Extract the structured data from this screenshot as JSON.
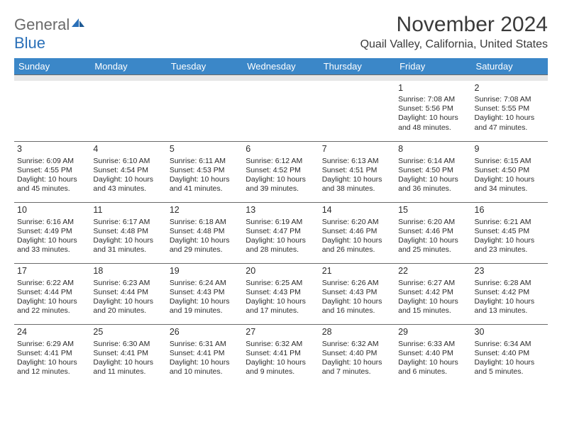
{
  "logo": {
    "word1": "General",
    "word2": "Blue"
  },
  "title": "November 2024",
  "subtitle": "Quail Valley, California, United States",
  "colors": {
    "header_bg": "#3b87c8",
    "header_fg": "#ffffff",
    "spacer_bg": "#e7e7e7",
    "rule": "#6a6a6a",
    "text": "#2b2b2b",
    "logo_gray": "#6a6a6a",
    "logo_blue": "#2a70b8"
  },
  "weekdays": [
    "Sunday",
    "Monday",
    "Tuesday",
    "Wednesday",
    "Thursday",
    "Friday",
    "Saturday"
  ],
  "weeks": [
    [
      null,
      null,
      null,
      null,
      null,
      {
        "n": "1",
        "sr": "Sunrise: 7:08 AM",
        "ss": "Sunset: 5:56 PM",
        "d1": "Daylight: 10 hours",
        "d2": "and 48 minutes."
      },
      {
        "n": "2",
        "sr": "Sunrise: 7:08 AM",
        "ss": "Sunset: 5:55 PM",
        "d1": "Daylight: 10 hours",
        "d2": "and 47 minutes."
      }
    ],
    [
      {
        "n": "3",
        "sr": "Sunrise: 6:09 AM",
        "ss": "Sunset: 4:55 PM",
        "d1": "Daylight: 10 hours",
        "d2": "and 45 minutes."
      },
      {
        "n": "4",
        "sr": "Sunrise: 6:10 AM",
        "ss": "Sunset: 4:54 PM",
        "d1": "Daylight: 10 hours",
        "d2": "and 43 minutes."
      },
      {
        "n": "5",
        "sr": "Sunrise: 6:11 AM",
        "ss": "Sunset: 4:53 PM",
        "d1": "Daylight: 10 hours",
        "d2": "and 41 minutes."
      },
      {
        "n": "6",
        "sr": "Sunrise: 6:12 AM",
        "ss": "Sunset: 4:52 PM",
        "d1": "Daylight: 10 hours",
        "d2": "and 39 minutes."
      },
      {
        "n": "7",
        "sr": "Sunrise: 6:13 AM",
        "ss": "Sunset: 4:51 PM",
        "d1": "Daylight: 10 hours",
        "d2": "and 38 minutes."
      },
      {
        "n": "8",
        "sr": "Sunrise: 6:14 AM",
        "ss": "Sunset: 4:50 PM",
        "d1": "Daylight: 10 hours",
        "d2": "and 36 minutes."
      },
      {
        "n": "9",
        "sr": "Sunrise: 6:15 AM",
        "ss": "Sunset: 4:50 PM",
        "d1": "Daylight: 10 hours",
        "d2": "and 34 minutes."
      }
    ],
    [
      {
        "n": "10",
        "sr": "Sunrise: 6:16 AM",
        "ss": "Sunset: 4:49 PM",
        "d1": "Daylight: 10 hours",
        "d2": "and 33 minutes."
      },
      {
        "n": "11",
        "sr": "Sunrise: 6:17 AM",
        "ss": "Sunset: 4:48 PM",
        "d1": "Daylight: 10 hours",
        "d2": "and 31 minutes."
      },
      {
        "n": "12",
        "sr": "Sunrise: 6:18 AM",
        "ss": "Sunset: 4:48 PM",
        "d1": "Daylight: 10 hours",
        "d2": "and 29 minutes."
      },
      {
        "n": "13",
        "sr": "Sunrise: 6:19 AM",
        "ss": "Sunset: 4:47 PM",
        "d1": "Daylight: 10 hours",
        "d2": "and 28 minutes."
      },
      {
        "n": "14",
        "sr": "Sunrise: 6:20 AM",
        "ss": "Sunset: 4:46 PM",
        "d1": "Daylight: 10 hours",
        "d2": "and 26 minutes."
      },
      {
        "n": "15",
        "sr": "Sunrise: 6:20 AM",
        "ss": "Sunset: 4:46 PM",
        "d1": "Daylight: 10 hours",
        "d2": "and 25 minutes."
      },
      {
        "n": "16",
        "sr": "Sunrise: 6:21 AM",
        "ss": "Sunset: 4:45 PM",
        "d1": "Daylight: 10 hours",
        "d2": "and 23 minutes."
      }
    ],
    [
      {
        "n": "17",
        "sr": "Sunrise: 6:22 AM",
        "ss": "Sunset: 4:44 PM",
        "d1": "Daylight: 10 hours",
        "d2": "and 22 minutes."
      },
      {
        "n": "18",
        "sr": "Sunrise: 6:23 AM",
        "ss": "Sunset: 4:44 PM",
        "d1": "Daylight: 10 hours",
        "d2": "and 20 minutes."
      },
      {
        "n": "19",
        "sr": "Sunrise: 6:24 AM",
        "ss": "Sunset: 4:43 PM",
        "d1": "Daylight: 10 hours",
        "d2": "and 19 minutes."
      },
      {
        "n": "20",
        "sr": "Sunrise: 6:25 AM",
        "ss": "Sunset: 4:43 PM",
        "d1": "Daylight: 10 hours",
        "d2": "and 17 minutes."
      },
      {
        "n": "21",
        "sr": "Sunrise: 6:26 AM",
        "ss": "Sunset: 4:43 PM",
        "d1": "Daylight: 10 hours",
        "d2": "and 16 minutes."
      },
      {
        "n": "22",
        "sr": "Sunrise: 6:27 AM",
        "ss": "Sunset: 4:42 PM",
        "d1": "Daylight: 10 hours",
        "d2": "and 15 minutes."
      },
      {
        "n": "23",
        "sr": "Sunrise: 6:28 AM",
        "ss": "Sunset: 4:42 PM",
        "d1": "Daylight: 10 hours",
        "d2": "and 13 minutes."
      }
    ],
    [
      {
        "n": "24",
        "sr": "Sunrise: 6:29 AM",
        "ss": "Sunset: 4:41 PM",
        "d1": "Daylight: 10 hours",
        "d2": "and 12 minutes."
      },
      {
        "n": "25",
        "sr": "Sunrise: 6:30 AM",
        "ss": "Sunset: 4:41 PM",
        "d1": "Daylight: 10 hours",
        "d2": "and 11 minutes."
      },
      {
        "n": "26",
        "sr": "Sunrise: 6:31 AM",
        "ss": "Sunset: 4:41 PM",
        "d1": "Daylight: 10 hours",
        "d2": "and 10 minutes."
      },
      {
        "n": "27",
        "sr": "Sunrise: 6:32 AM",
        "ss": "Sunset: 4:41 PM",
        "d1": "Daylight: 10 hours",
        "d2": "and 9 minutes."
      },
      {
        "n": "28",
        "sr": "Sunrise: 6:32 AM",
        "ss": "Sunset: 4:40 PM",
        "d1": "Daylight: 10 hours",
        "d2": "and 7 minutes."
      },
      {
        "n": "29",
        "sr": "Sunrise: 6:33 AM",
        "ss": "Sunset: 4:40 PM",
        "d1": "Daylight: 10 hours",
        "d2": "and 6 minutes."
      },
      {
        "n": "30",
        "sr": "Sunrise: 6:34 AM",
        "ss": "Sunset: 4:40 PM",
        "d1": "Daylight: 10 hours",
        "d2": "and 5 minutes."
      }
    ]
  ]
}
